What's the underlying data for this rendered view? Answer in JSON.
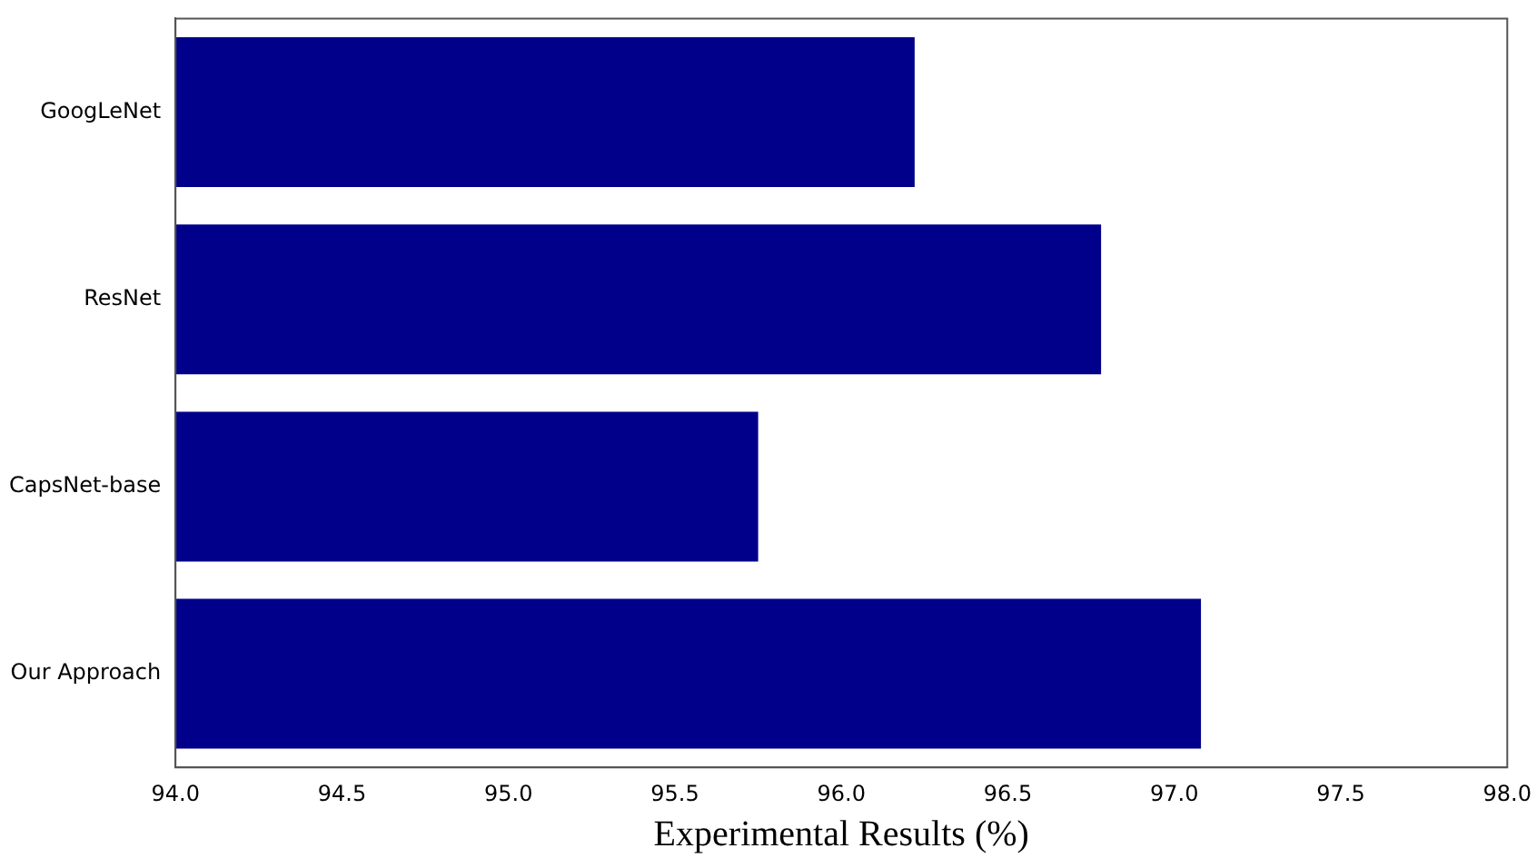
{
  "chart_data": {
    "type": "bar",
    "orientation": "horizontal",
    "xlabel": "Experimental Results (%)",
    "categories": [
      "GoogLeNet",
      "ResNet",
      "CapsNet-base",
      "Our Approach"
    ],
    "values": [
      96.22,
      96.78,
      95.75,
      97.08
    ],
    "color": "#00008b",
    "xlim": [
      94.0,
      98.0
    ],
    "xticks": [
      {
        "value": 94,
        "label": "94.0"
      },
      {
        "value": 94.5,
        "label": "94.5"
      },
      {
        "value": 95,
        "label": "95.0"
      },
      {
        "value": 95.5,
        "label": "95.5"
      },
      {
        "value": 96,
        "label": "96.0"
      },
      {
        "value": 96.5,
        "label": "96.5"
      },
      {
        "value": 97,
        "label": "97.0"
      },
      {
        "value": 97.5,
        "label": "97.5"
      },
      {
        "value": 98,
        "label": "98.0"
      }
    ],
    "grid": false,
    "legend": false
  }
}
